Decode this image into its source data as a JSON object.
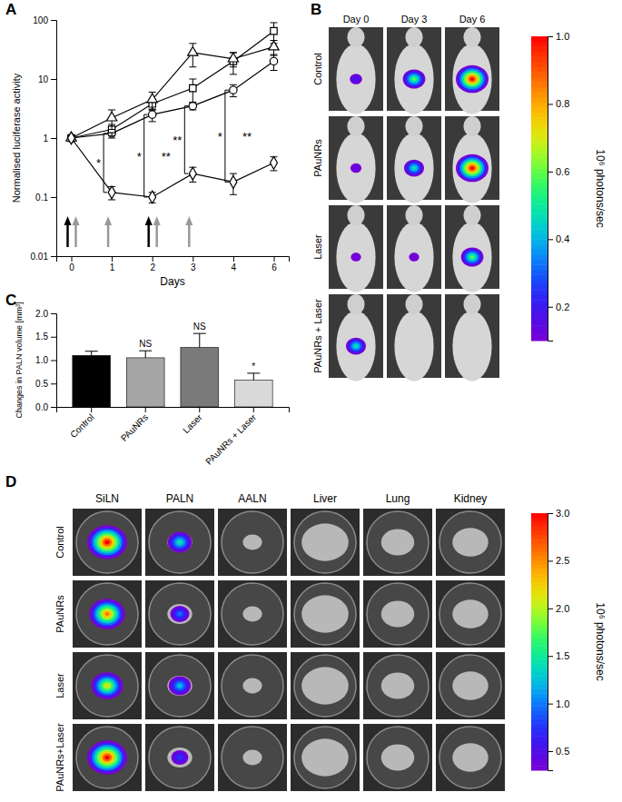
{
  "chart_data": [
    {
      "panel": "A",
      "type": "line",
      "log": "y",
      "x_label": "Days",
      "y_label": "Normalised luciferase activity",
      "categories": [
        "0",
        "1",
        "2",
        "3",
        "4",
        "6"
      ],
      "ylim": [
        0.01,
        100
      ],
      "yticks": [
        0.01,
        0.1,
        1,
        10,
        100
      ],
      "series": [
        {
          "color": "#000000",
          "marker": "circle",
          "values": [
            1,
            1.2,
            2.5,
            3.5,
            6.5,
            20
          ],
          "errors": [
            0,
            0.2,
            0.6,
            0.5,
            1.5,
            6
          ]
        },
        {
          "color": "#000000",
          "marker": "square",
          "values": [
            1,
            1.4,
            3.8,
            7,
            20,
            65
          ],
          "errors": [
            0,
            0.3,
            0.8,
            3,
            8,
            25
          ]
        },
        {
          "color": "#000000",
          "marker": "triangle",
          "values": [
            1,
            2.2,
            4.5,
            28,
            22,
            35
          ],
          "errors": [
            0,
            0.8,
            1.5,
            12,
            6,
            10
          ]
        },
        {
          "color": "#000000",
          "marker": "diamond",
          "values": [
            1,
            0.12,
            0.1,
            0.25,
            0.18,
            0.38
          ],
          "errors": [
            0,
            0.03,
            0.02,
            0.07,
            0.07,
            0.1
          ]
        }
      ],
      "annotations": [
        {
          "x": "1",
          "text": "*"
        },
        {
          "x": "2",
          "text": "*"
        },
        {
          "x": "2",
          "text": "**"
        },
        {
          "x": "3",
          "text": "**"
        },
        {
          "x": "4",
          "text": "*"
        },
        {
          "x": "4",
          "text": "**"
        }
      ],
      "arrows": [
        {
          "x": "0",
          "color": "#000000"
        },
        {
          "x": "0",
          "color": "#999999"
        },
        {
          "x": "1",
          "color": "#999999"
        },
        {
          "x": "2",
          "color": "#000000"
        },
        {
          "x": "2",
          "color": "#999999"
        },
        {
          "x": "3",
          "color": "#999999"
        }
      ]
    },
    {
      "panel": "C",
      "type": "bar",
      "y_label": "Changes in PALN volume [mm³]",
      "categories": [
        "Control",
        "PAuNRs",
        "Laser",
        "PAuNRs + Laser"
      ],
      "values": [
        1.1,
        1.05,
        1.27,
        0.57
      ],
      "errors": [
        0.09,
        0.15,
        0.3,
        0.15
      ],
      "colors": [
        "#000000",
        "#a6a6a6",
        "#7a7a7a",
        "#d9d9d9"
      ],
      "ylim": [
        0,
        2
      ],
      "yticks": [
        {
          "value": 0,
          "label": "0.0"
        },
        0.5,
        {
          "value": 1,
          "label": "1.0"
        },
        1.5,
        {
          "value": 2,
          "label": "2.0"
        }
      ],
      "significance": [
        null,
        "NS",
        "NS",
        "*"
      ]
    }
  ],
  "image_panels": [
    {
      "panel": "B",
      "columns": [
        "Day 0",
        "Day 3",
        "Day 6"
      ],
      "rows": [
        "Control",
        "PAuNRs",
        "Laser",
        "PAuNRs + Laser"
      ],
      "signal": [
        [
          0.2,
          0.6,
          1.0
        ],
        [
          0.15,
          0.5,
          1.0
        ],
        [
          0.12,
          0.12,
          0.6
        ],
        [
          0.5,
          0,
          0
        ]
      ],
      "colorbar": {
        "range": [
          0.1,
          1.0
        ],
        "ticks": [
          0.2,
          0.4,
          0.6,
          0.8,
          {
            "value": 1,
            "label": "1.0"
          }
        ],
        "label": "10⁶ photons/sec"
      }
    },
    {
      "panel": "D",
      "columns": [
        "SiLN",
        "PALN",
        "AALN",
        "Liver",
        "Lung",
        "Kidney"
      ],
      "rows": [
        "Control",
        "PAuNRs",
        "Laser",
        "PAuNRs+Laser"
      ],
      "signal": [
        [
          3,
          1.5,
          0,
          0,
          0,
          0
        ],
        [
          2.6,
          1.0,
          0,
          0,
          0,
          0
        ],
        [
          2.2,
          1.3,
          0,
          0,
          0,
          0
        ],
        [
          3,
          0.8,
          0,
          0,
          0,
          0
        ]
      ],
      "colorbar": {
        "range": [
          0.3,
          3.0
        ],
        "ticks": [
          0.5,
          {
            "value": 1,
            "label": "1.0"
          },
          1.5,
          {
            "value": 2,
            "label": "2.0"
          },
          2.5,
          {
            "value": 3,
            "label": "3.0"
          }
        ],
        "label": "10⁶ photons/sec"
      }
    }
  ]
}
